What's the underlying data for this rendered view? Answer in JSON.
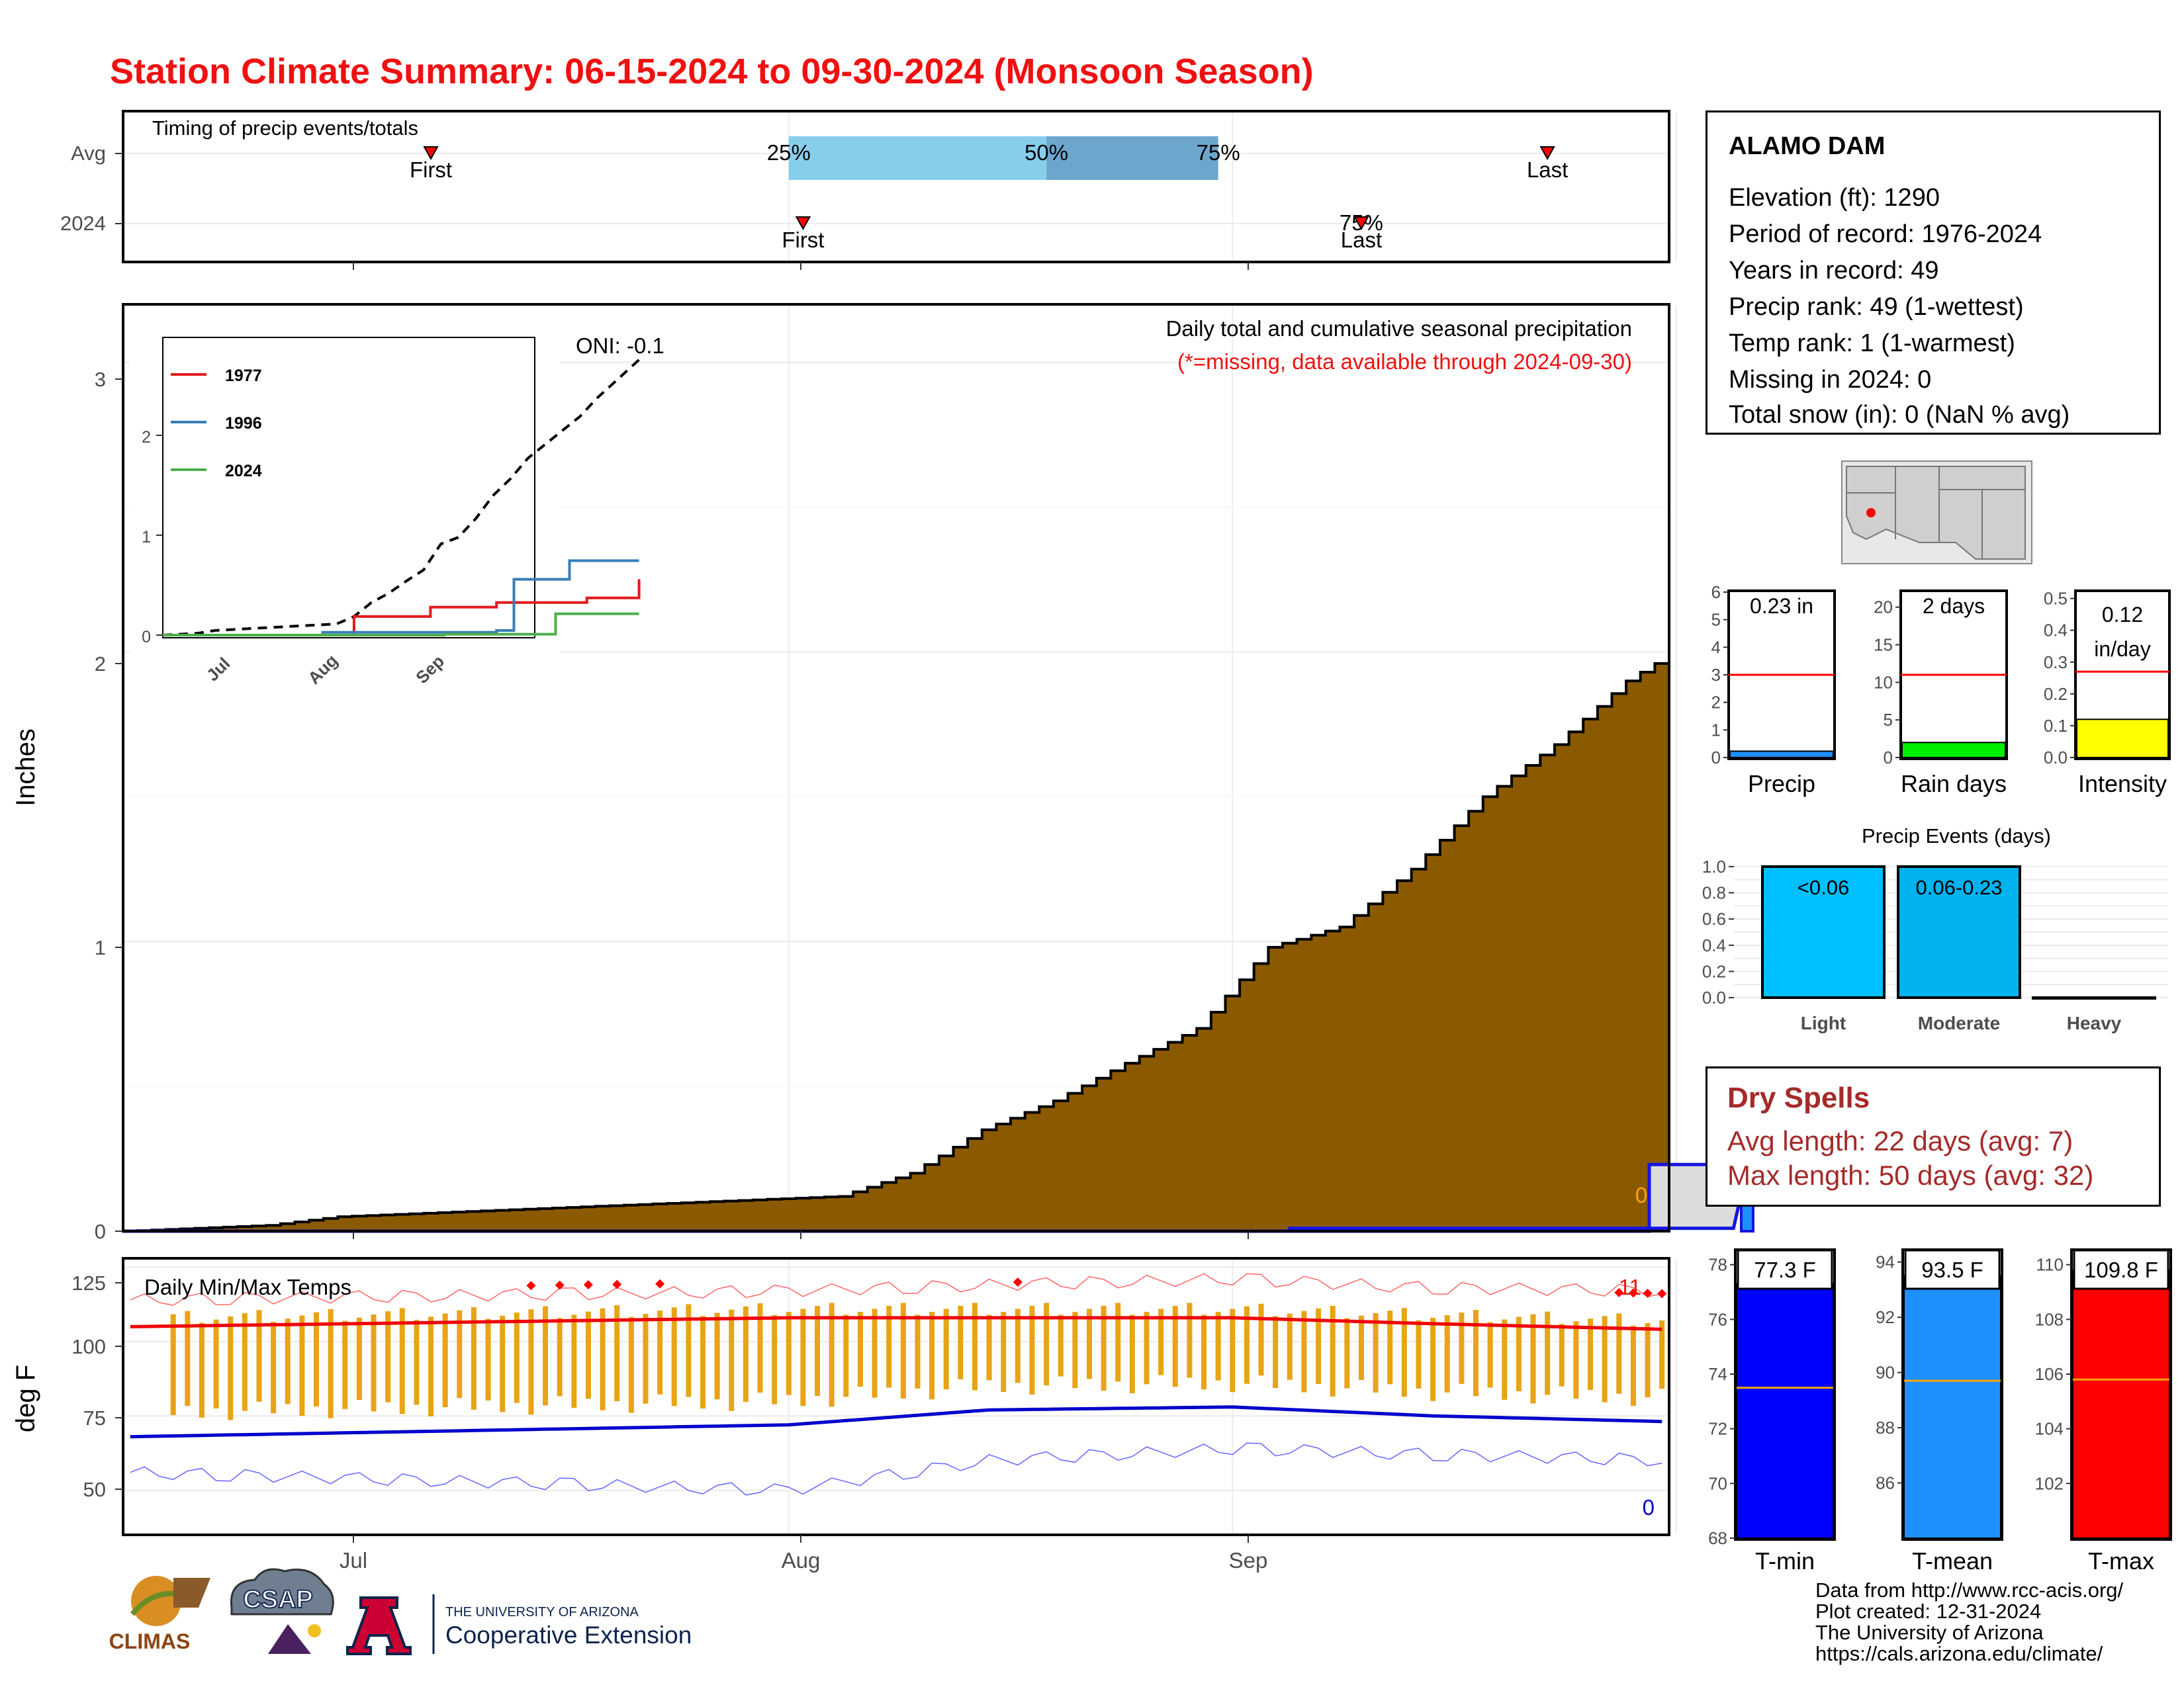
{
  "title": "Station Climate Summary: 06-15-2024 to 09-30-2024 (Monsoon Season)",
  "timing": {
    "label": "Timing of precip events/totals",
    "rows": [
      "Avg",
      "2024"
    ],
    "avg": {
      "first_doy": 21,
      "last_doy": 99,
      "q25_doy": 46,
      "q50_doy": 64,
      "q75_doy": 76
    },
    "y2024": {
      "first_doy": 47,
      "last_doy": 86,
      "pct_doy": 86
    },
    "first_label": "First",
    "last_label": "Last",
    "q25_label": "25%",
    "q50_label": "50%",
    "q75_label": "75%",
    "overlap_label": "75%"
  },
  "precip_panel": {
    "title": "Daily total and cumulative seasonal precipitation",
    "subtitle": "(*=missing, data available through 2024-09-30)",
    "oni": "ONI: -0.1",
    "ylabel": "Inches",
    "yticks": [
      "0",
      "1",
      "2",
      "3"
    ],
    "zero_note": "0"
  },
  "inset": {
    "legend": [
      "1977",
      "1996",
      "2024"
    ],
    "yticks": [
      "0",
      "1",
      "2"
    ],
    "xticks": [
      "Jul",
      "Aug",
      "Sep"
    ]
  },
  "temp_panel": {
    "label": "Daily Min/Max Temps",
    "ylabel": "deg F",
    "yticks": [
      "50",
      "75",
      "100",
      "125"
    ],
    "hot_count": "11",
    "cold_count": "0"
  },
  "xaxis": {
    "ticks": [
      "Jul",
      "Aug",
      "Sep"
    ]
  },
  "station": {
    "name": "ALAMO DAM",
    "lines": [
      "Elevation (ft): 1290",
      "Period of record: 1976-2024",
      "Years in record: 49",
      "Precip rank: 49 (1-wettest)",
      "Temp rank: 1 (1-warmest)",
      "Missing in 2024: 0",
      "Total snow (in): 0 (NaN % avg)"
    ]
  },
  "mini_bars": {
    "precip": {
      "label": "Precip",
      "value_label": "0.23 in",
      "yticks": [
        "0",
        "1",
        "2",
        "3",
        "4",
        "5",
        "6"
      ]
    },
    "rain_days": {
      "label": "Rain days",
      "value_label": "2 days",
      "yticks": [
        "0",
        "5",
        "10",
        "15",
        "20"
      ]
    },
    "intensity": {
      "label": "Intensity",
      "value_label_1": "0.12",
      "value_label_2": "in/day",
      "yticks": [
        "0.0",
        "0.1",
        "0.2",
        "0.3",
        "0.4",
        "0.5"
      ]
    }
  },
  "events": {
    "title": "Precip Events (days)",
    "categories": [
      "Light",
      "Moderate",
      "Heavy"
    ],
    "labels": [
      "<0.06",
      "0.06-0.23",
      ""
    ],
    "yticks": [
      "0.0",
      "0.2",
      "0.4",
      "0.6",
      "0.8",
      "1.0"
    ]
  },
  "dry_spells": {
    "title": "Dry Spells",
    "avg_line": "Avg length: 22 days (avg: 7)",
    "max_line": "Max length: 50 days (avg: 32)"
  },
  "temp_bars": {
    "tmin": {
      "label": "T-min",
      "value_label": "77.3 F",
      "yticks": [
        "68",
        "70",
        "72",
        "74",
        "76",
        "78"
      ]
    },
    "tmean": {
      "label": "T-mean",
      "value_label": "93.5 F",
      "yticks": [
        "86",
        "88",
        "90",
        "92",
        "94"
      ]
    },
    "tmax": {
      "label": "T-max",
      "value_label": "109.8 F",
      "yticks": [
        "102",
        "104",
        "106",
        "108",
        "110"
      ]
    }
  },
  "footer": {
    "lines": [
      "Data from http://www.rcc-acis.org/",
      "Plot created: 12-31-2024",
      "The University of Arizona",
      "https://cals.arizona.edu/climate/"
    ],
    "logo_climas": "CLIMAS",
    "logo_csap": "CSAP",
    "logo_ua_small": "THE UNIVERSITY OF ARIZONA",
    "logo_ua_big": "Cooperative Extension"
  },
  "chart_data": [
    {
      "type": "area",
      "title": "Daily total and cumulative seasonal precipitation",
      "ylabel": "Inches",
      "ylim": [
        0,
        3.2
      ],
      "series": [
        {
          "name": "Average cumulative",
          "x": [
            "06-15",
            "06-20",
            "06-25",
            "06-30",
            "07-05",
            "07-10",
            "07-15",
            "07-20",
            "07-25",
            "07-30",
            "08-04",
            "08-09",
            "08-14",
            "08-19",
            "08-24",
            "08-29",
            "09-03",
            "09-08",
            "09-13",
            "09-18",
            "09-23",
            "09-30"
          ],
          "values": [
            0,
            0.01,
            0.02,
            0.05,
            0.12,
            0.2,
            0.35,
            0.45,
            0.58,
            0.7,
            0.98,
            1.05,
            1.25,
            1.5,
            1.68,
            1.9,
            2.05,
            2.2,
            2.35,
            2.55,
            2.72,
            2.96
          ]
        },
        {
          "name": "2024 cumulative",
          "x": [
            "06-15",
            "08-05",
            "08-05",
            "09-05",
            "09-06",
            "09-30"
          ],
          "values": [
            0,
            0,
            0.01,
            0.01,
            0.23,
            0.23
          ]
        }
      ]
    },
    {
      "type": "line",
      "title": "Daily Min/Max Temps",
      "ylabel": "deg F",
      "ylim": [
        35,
        128
      ],
      "series": [
        {
          "name": "Avg max",
          "x": [
            "06-15",
            "07-01",
            "07-15",
            "08-01",
            "08-15",
            "09-01",
            "09-15",
            "09-30"
          ],
          "values": [
            105,
            108,
            108,
            108,
            106,
            104,
            100,
            99
          ]
        },
        {
          "name": "Avg min",
          "x": [
            "06-15",
            "07-01",
            "07-15",
            "08-01",
            "08-15",
            "09-01",
            "09-15",
            "09-30"
          ],
          "values": [
            68,
            72,
            77,
            78,
            75,
            73,
            67,
            62
          ]
        },
        {
          "name": "Record max",
          "x": [
            "06-15",
            "07-01",
            "07-15",
            "08-01",
            "08-15",
            "09-01",
            "09-15",
            "09-30"
          ],
          "values": [
            114,
            117,
            119,
            121,
            118,
            117,
            115,
            112
          ]
        },
        {
          "name": "Record min",
          "x": [
            "06-15",
            "07-01",
            "07-15",
            "08-01",
            "08-15",
            "09-01",
            "09-15",
            "09-30"
          ],
          "values": [
            56,
            50,
            60,
            64,
            62,
            60,
            55,
            44
          ]
        }
      ]
    },
    {
      "type": "line",
      "title": "Inset: cumulative precipitation",
      "ylim": [
        0,
        3.2
      ],
      "series": [
        {
          "name": "1977",
          "x": [
            "06-15",
            "07-01",
            "07-10",
            "08-01",
            "08-20",
            "09-15",
            "09-30"
          ],
          "values": [
            0,
            0,
            0.2,
            0.3,
            0.35,
            0.4,
            0.6
          ]
        },
        {
          "name": "1996",
          "x": [
            "06-15",
            "07-01",
            "08-20",
            "08-25",
            "09-10",
            "09-30"
          ],
          "values": [
            0,
            0.03,
            0.05,
            0.6,
            0.8,
            0.8
          ]
        },
        {
          "name": "2024",
          "x": [
            "06-15",
            "08-05",
            "09-06",
            "09-30"
          ],
          "values": [
            0,
            0.01,
            0.23,
            0.23
          ]
        }
      ]
    },
    {
      "type": "bar",
      "title": "Precip",
      "categories": [
        "2024"
      ],
      "values": [
        0.23
      ],
      "avg": 3.0,
      "ylim": [
        0,
        6
      ]
    },
    {
      "type": "bar",
      "title": "Rain days",
      "categories": [
        "2024"
      ],
      "values": [
        2
      ],
      "avg": 11,
      "ylim": [
        0,
        22
      ]
    },
    {
      "type": "bar",
      "title": "Intensity",
      "categories": [
        "2024"
      ],
      "values": [
        0.12
      ],
      "avg": 0.27,
      "ylim": [
        0,
        0.52
      ]
    },
    {
      "type": "bar",
      "title": "Precip Events (days)",
      "categories": [
        "Light",
        "Moderate",
        "Heavy"
      ],
      "values": [
        1,
        1,
        0
      ],
      "ylim": [
        0,
        1.05
      ]
    },
    {
      "type": "bar",
      "title": "T-min",
      "categories": [
        "2024"
      ],
      "values": [
        77.3
      ],
      "avg": 73.5,
      "ylim": [
        68,
        78.5
      ]
    },
    {
      "type": "bar",
      "title": "T-mean",
      "categories": [
        "2024"
      ],
      "values": [
        93.5
      ],
      "avg": 89.7,
      "ylim": [
        84,
        94.4
      ]
    },
    {
      "type": "bar",
      "title": "T-max",
      "categories": [
        "2024"
      ],
      "values": [
        109.8
      ],
      "avg": 105.8,
      "ylim": [
        100,
        110.5
      ]
    }
  ]
}
